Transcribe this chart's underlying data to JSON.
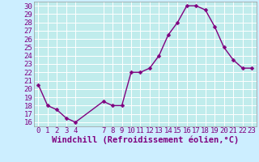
{
  "x": [
    0,
    1,
    2,
    3,
    4,
    7,
    8,
    9,
    10,
    11,
    12,
    13,
    14,
    15,
    16,
    17,
    18,
    19,
    20,
    21,
    22,
    23
  ],
  "y": [
    20.5,
    18.0,
    17.5,
    16.5,
    16.0,
    18.5,
    18.0,
    18.0,
    22.0,
    22.0,
    22.5,
    24.0,
    26.5,
    28.0,
    30.0,
    30.0,
    29.5,
    27.5,
    25.0,
    23.5,
    22.5,
    22.5
  ],
  "line_color": "#800080",
  "marker_color": "#800080",
  "bg_color": "#cceeff",
  "plot_bg_color": "#c0ecec",
  "grid_color": "#ffffff",
  "xlabel": "Windchill (Refroidissement éolien,°C)",
  "xlabel_color": "#800080",
  "tick_color": "#800080",
  "ylim": [
    15.5,
    30.5
  ],
  "xlim": [
    -0.5,
    23.5
  ],
  "yticks": [
    16,
    17,
    18,
    19,
    20,
    21,
    22,
    23,
    24,
    25,
    26,
    27,
    28,
    29,
    30
  ],
  "xticks": [
    0,
    1,
    2,
    3,
    4,
    7,
    8,
    9,
    10,
    11,
    12,
    13,
    14,
    15,
    16,
    17,
    18,
    19,
    20,
    21,
    22,
    23
  ],
  "tick_label_fontsize": 6.5,
  "xlabel_fontsize": 7.5,
  "marker_size": 2.5,
  "line_width": 1.0
}
